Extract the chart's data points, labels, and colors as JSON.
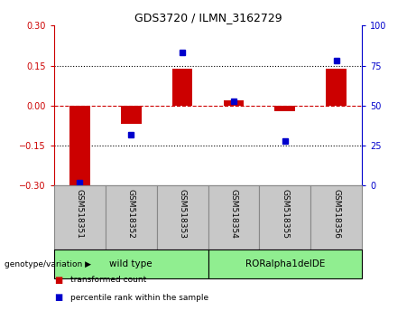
{
  "title": "GDS3720 / ILMN_3162729",
  "samples": [
    "GSM518351",
    "GSM518352",
    "GSM518353",
    "GSM518354",
    "GSM518355",
    "GSM518356"
  ],
  "transformed_count": [
    -0.3,
    -0.07,
    0.14,
    0.02,
    -0.02,
    0.14
  ],
  "percentile_rank": [
    2,
    32,
    83,
    53,
    28,
    78
  ],
  "ylim_left": [
    -0.3,
    0.3
  ],
  "ylim_right": [
    0,
    100
  ],
  "yticks_left": [
    -0.3,
    -0.15,
    0,
    0.15,
    0.3
  ],
  "yticks_right": [
    0,
    25,
    50,
    75,
    100
  ],
  "hlines": [
    0.15,
    -0.15
  ],
  "bar_color": "#CC0000",
  "dot_color": "#0000CC",
  "bar_width": 0.4,
  "left_tick_color": "#CC0000",
  "right_tick_color": "#0000CC",
  "groups": [
    {
      "label": "wild type",
      "indices": [
        0,
        1,
        2
      ],
      "color": "#90EE90"
    },
    {
      "label": "RORalpha1delDE",
      "indices": [
        3,
        4,
        5
      ],
      "color": "#90EE90"
    }
  ],
  "genotype_label": "genotype/variation",
  "legend_items": [
    {
      "color": "#CC0000",
      "label": "transformed count"
    },
    {
      "color": "#0000CC",
      "label": "percentile rank within the sample"
    }
  ],
  "cell_bg": "#C8C8C8",
  "cell_border": "#888888",
  "group_border": "#000000",
  "background_color": "#ffffff"
}
